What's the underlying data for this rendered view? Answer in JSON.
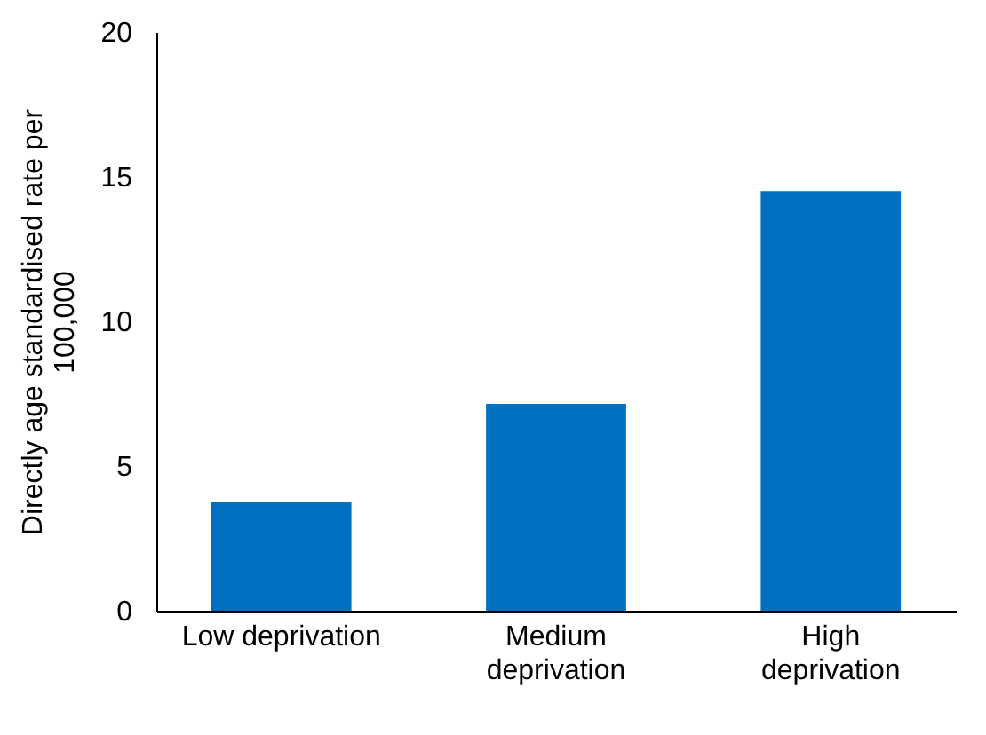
{
  "chart_data": {
    "type": "bar",
    "ylabel": "Directly age standardised rate per 100,000",
    "categories": [
      "Low deprivation",
      "Medium deprivation",
      "High deprivation"
    ],
    "values": [
      3.75,
      7.15,
      14.5
    ],
    "color": "#0070c0",
    "ylim": [
      0,
      20
    ],
    "yticks": [
      0,
      5,
      10,
      15,
      20
    ],
    "grid": false
  }
}
